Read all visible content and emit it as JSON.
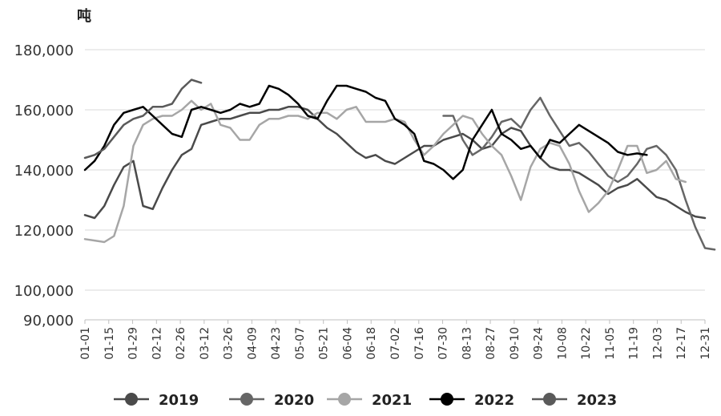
{
  "chart_data": {
    "type": "line",
    "unit_label": "吨",
    "ylim": [
      90000,
      180000
    ],
    "y_ticks": [
      90000,
      100000,
      120000,
      140000,
      160000,
      180000
    ],
    "y_tick_labels": [
      "90,000",
      "100,000",
      "120,000",
      "140,000",
      "160,000",
      "180,000"
    ],
    "grid": "horizontal",
    "legend_position": "bottom",
    "x_labels": [
      "01-01",
      "01-15",
      "01-29",
      "02-12",
      "02-26",
      "03-12",
      "03-26",
      "04-09",
      "04-23",
      "05-07",
      "05-21",
      "06-04",
      "06-18",
      "07-02",
      "07-16",
      "07-30",
      "08-13",
      "08-27",
      "09-10",
      "09-24",
      "10-08",
      "10-22",
      "11-05",
      "11-19",
      "12-03",
      "12-17",
      "12-31"
    ],
    "series": [
      {
        "name": "2019",
        "color": "#4a4a4a",
        "width": 2.5,
        "values": [
          125000,
          124000,
          128000,
          135000,
          141000,
          143000,
          128000,
          127000,
          134000,
          140000,
          145000,
          147000,
          155000,
          156000,
          157000,
          157000,
          158000,
          159000,
          159000,
          160000,
          160000,
          161000,
          161000,
          160000,
          157000,
          154000,
          152000,
          149000,
          146000,
          144000,
          145000,
          143000,
          142000,
          144000,
          146000,
          148000,
          148000,
          150000,
          151000,
          152000,
          150000,
          147000,
          148000,
          152000,
          154000,
          153000,
          148000,
          144000,
          141000,
          140000,
          140000,
          139000,
          137000,
          135000,
          132000,
          134000,
          135000,
          137000,
          134000,
          131000,
          130000,
          128000,
          126000,
          124500,
          124000
        ]
      },
      {
        "name": "2020",
        "color": "#666666",
        "width": 2.5,
        "values": [
          null,
          null,
          null,
          null,
          null,
          null,
          null,
          null,
          null,
          null,
          null,
          null,
          null,
          null,
          null,
          null,
          null,
          null,
          null,
          null,
          null,
          null,
          null,
          null,
          null,
          null,
          null,
          null,
          null,
          null,
          null,
          null,
          null,
          null,
          null,
          null,
          null,
          158000,
          158000,
          150000,
          145000,
          147000,
          151000,
          156000,
          157000,
          154000,
          160000,
          164000,
          158000,
          153000,
          148000,
          149000,
          146000,
          142000,
          138000,
          136000,
          138000,
          142000,
          147000,
          148000,
          145000,
          140000,
          130000,
          121000,
          114000,
          113500
        ]
      },
      {
        "name": "2021",
        "color": "#a6a6a6",
        "width": 2.5,
        "values": [
          117000,
          116500,
          116000,
          118000,
          128000,
          148000,
          155000,
          157000,
          158000,
          158000,
          160000,
          163000,
          160000,
          162000,
          155000,
          154000,
          150000,
          150000,
          155000,
          157000,
          157000,
          158000,
          158000,
          157000,
          159000,
          159000,
          157000,
          160000,
          161000,
          156000,
          156000,
          156000,
          157000,
          156000,
          150000,
          145000,
          148000,
          152000,
          155000,
          158000,
          157000,
          152000,
          148000,
          145000,
          138000,
          130000,
          141000,
          147000,
          149000,
          148000,
          142000,
          133000,
          126000,
          129000,
          133000,
          140000,
          148000,
          148000,
          139000,
          140000,
          143000,
          137000,
          136000
        ]
      },
      {
        "name": "2022",
        "color": "#000000",
        "width": 2.5,
        "values": [
          140000,
          143000,
          148000,
          155000,
          159000,
          160000,
          161000,
          158000,
          155000,
          152000,
          151000,
          160000,
          161000,
          160000,
          159000,
          160000,
          162000,
          161000,
          162000,
          168000,
          167000,
          165000,
          162000,
          158000,
          157000,
          163000,
          168000,
          168000,
          167000,
          166000,
          164000,
          163000,
          157000,
          155000,
          152000,
          143000,
          142000,
          140000,
          137000,
          140000,
          150000,
          155000,
          160000,
          152000,
          150000,
          147000,
          148000,
          144000,
          150000,
          149000,
          152000,
          155000,
          153000,
          151000,
          149000,
          146000,
          145000,
          145500,
          145000
        ]
      },
      {
        "name": "2023",
        "color": "#5a5a5a",
        "width": 2.5,
        "values": [
          144000,
          145000,
          147000,
          151000,
          155000,
          157000,
          158000,
          161000,
          161000,
          162000,
          167000,
          170000,
          169000
        ]
      }
    ]
  }
}
